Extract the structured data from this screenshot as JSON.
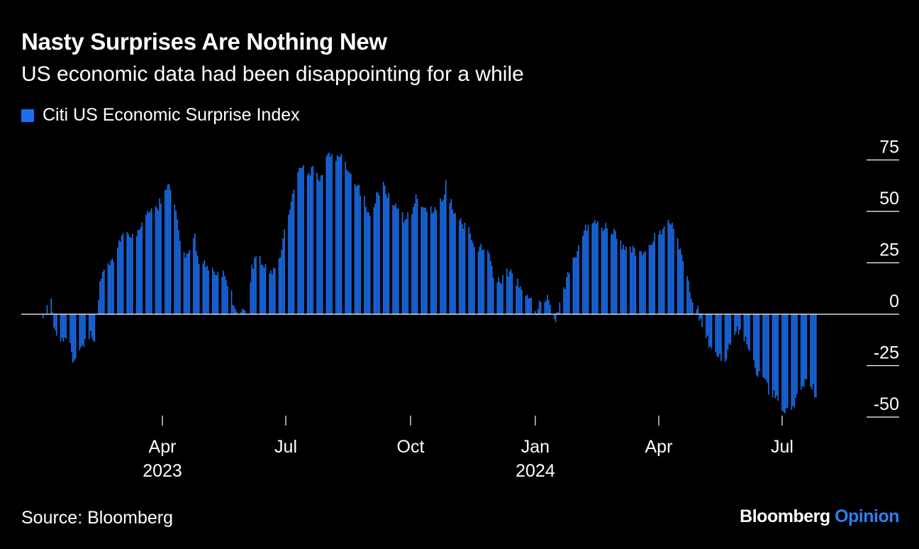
{
  "header": {
    "title": "Nasty Surprises Are Nothing New",
    "subtitle": "US economic data had been disappointing for a while"
  },
  "legend": {
    "label": "Citi US Economic Surprise Index"
  },
  "footer": {
    "source": "Source: Bloomberg",
    "brand_primary": "Bloomberg",
    "brand_secondary": "Opinion"
  },
  "colors": {
    "background": "#000000",
    "bar": "#1a6ff0",
    "text": "#ffffff",
    "brand_accent": "#2f7ff0"
  },
  "chart_data": {
    "type": "bar",
    "title": "Nasty Surprises Are Nothing New",
    "subtitle": "US economic data had been disappointing for a while",
    "series_name": "Citi US Economic Surprise Index",
    "frequency": "daily (business days)",
    "start_date": "2023-01-03",
    "end_date": "2024-07-26",
    "ylim": [
      -50,
      75
    ],
    "yticks": [
      75,
      50,
      25,
      0,
      -25,
      -50
    ],
    "ytick_labels": [
      "75",
      "50",
      "25",
      "0",
      "-25",
      "-50"
    ],
    "xticks": [
      {
        "date": "2023-04-01",
        "label": "Apr",
        "year": "2023"
      },
      {
        "date": "2023-07-01",
        "label": "Jul",
        "year": ""
      },
      {
        "date": "2023-10-01",
        "label": "Oct",
        "year": ""
      },
      {
        "date": "2024-01-01",
        "label": "Jan",
        "year": "2024"
      },
      {
        "date": "2024-04-01",
        "label": "Apr",
        "year": ""
      },
      {
        "date": "2024-07-01",
        "label": "Jul",
        "year": ""
      }
    ],
    "anchors": [
      [
        "2023-01-03",
        -2
      ],
      [
        "2023-01-09",
        9
      ],
      [
        "2023-01-11",
        -8
      ],
      [
        "2023-01-17",
        -12
      ],
      [
        "2023-01-23",
        -15
      ],
      [
        "2023-01-26",
        -25
      ],
      [
        "2023-02-01",
        -16
      ],
      [
        "2023-02-07",
        -10
      ],
      [
        "2023-02-10",
        -11
      ],
      [
        "2023-02-14",
        15
      ],
      [
        "2023-02-16",
        22
      ],
      [
        "2023-02-21",
        23
      ],
      [
        "2023-02-27",
        32
      ],
      [
        "2023-03-03",
        39
      ],
      [
        "2023-03-09",
        38
      ],
      [
        "2023-03-15",
        40
      ],
      [
        "2023-03-21",
        48
      ],
      [
        "2023-03-24",
        51
      ],
      [
        "2023-03-29",
        52
      ],
      [
        "2023-04-03",
        61
      ],
      [
        "2023-04-07",
        62
      ],
      [
        "2023-04-11",
        51
      ],
      [
        "2023-04-14",
        35
      ],
      [
        "2023-04-18",
        29
      ],
      [
        "2023-04-25",
        38
      ],
      [
        "2023-04-27",
        26
      ],
      [
        "2023-05-03",
        25
      ],
      [
        "2023-05-08",
        22
      ],
      [
        "2023-05-12",
        19
      ],
      [
        "2023-05-17",
        19
      ],
      [
        "2023-05-22",
        10
      ],
      [
        "2023-05-25",
        0
      ],
      [
        "2023-05-30",
        2
      ],
      [
        "2023-06-02",
        0
      ],
      [
        "2023-06-06",
        22
      ],
      [
        "2023-06-09",
        30
      ],
      [
        "2023-06-13",
        26
      ],
      [
        "2023-06-16",
        22
      ],
      [
        "2023-06-21",
        20
      ],
      [
        "2023-06-26",
        26
      ],
      [
        "2023-06-29",
        36
      ],
      [
        "2023-07-05",
        55
      ],
      [
        "2023-07-11",
        73
      ],
      [
        "2023-07-14",
        73
      ],
      [
        "2023-07-18",
        68
      ],
      [
        "2023-07-21",
        72
      ],
      [
        "2023-07-26",
        66
      ],
      [
        "2023-08-01",
        78
      ],
      [
        "2023-08-04",
        77
      ],
      [
        "2023-08-09",
        77
      ],
      [
        "2023-08-14",
        73
      ],
      [
        "2023-08-18",
        69
      ],
      [
        "2023-08-23",
        62
      ],
      [
        "2023-08-29",
        54
      ],
      [
        "2023-09-01",
        48
      ],
      [
        "2023-09-06",
        58
      ],
      [
        "2023-09-11",
        62
      ],
      [
        "2023-09-15",
        58
      ],
      [
        "2023-09-20",
        52
      ],
      [
        "2023-09-26",
        47
      ],
      [
        "2023-10-02",
        48
      ],
      [
        "2023-10-05",
        58
      ],
      [
        "2023-10-10",
        53
      ],
      [
        "2023-10-16",
        50
      ],
      [
        "2023-10-19",
        52
      ],
      [
        "2023-10-24",
        55
      ],
      [
        "2023-10-27",
        63
      ],
      [
        "2023-11-01",
        52
      ],
      [
        "2023-11-07",
        46
      ],
      [
        "2023-11-13",
        40
      ],
      [
        "2023-11-17",
        34
      ],
      [
        "2023-11-22",
        32
      ],
      [
        "2023-11-28",
        30
      ],
      [
        "2023-12-01",
        20
      ],
      [
        "2023-12-06",
        16
      ],
      [
        "2023-12-11",
        21
      ],
      [
        "2023-12-15",
        19
      ],
      [
        "2023-12-20",
        14
      ],
      [
        "2023-12-27",
        9
      ],
      [
        "2024-01-02",
        1
      ],
      [
        "2024-01-05",
        6
      ],
      [
        "2024-01-11",
        8
      ],
      [
        "2024-01-16",
        -2
      ],
      [
        "2024-01-19",
        5
      ],
      [
        "2024-01-24",
        17
      ],
      [
        "2024-01-30",
        28
      ],
      [
        "2024-02-05",
        40
      ],
      [
        "2024-02-09",
        44
      ],
      [
        "2024-02-14",
        47
      ],
      [
        "2024-02-20",
        42
      ],
      [
        "2024-02-23",
        44
      ],
      [
        "2024-02-28",
        40
      ],
      [
        "2024-03-04",
        35
      ],
      [
        "2024-03-08",
        31
      ],
      [
        "2024-03-13",
        32
      ],
      [
        "2024-03-18",
        29
      ],
      [
        "2024-03-22",
        32
      ],
      [
        "2024-03-27",
        36
      ],
      [
        "2024-04-02",
        40
      ],
      [
        "2024-04-05",
        43
      ],
      [
        "2024-04-10",
        44
      ],
      [
        "2024-04-15",
        35
      ],
      [
        "2024-04-18",
        28
      ],
      [
        "2024-04-23",
        16
      ],
      [
        "2024-04-26",
        6
      ],
      [
        "2024-04-30",
        3
      ],
      [
        "2024-05-03",
        -8
      ],
      [
        "2024-05-08",
        -14
      ],
      [
        "2024-05-14",
        -20
      ],
      [
        "2024-05-20",
        -23
      ],
      [
        "2024-05-23",
        -14
      ],
      [
        "2024-05-29",
        -8
      ],
      [
        "2024-06-03",
        -12
      ],
      [
        "2024-06-07",
        -16
      ],
      [
        "2024-06-12",
        -28
      ],
      [
        "2024-06-17",
        -31
      ],
      [
        "2024-06-21",
        -37
      ],
      [
        "2024-06-26",
        -40
      ],
      [
        "2024-07-01",
        -47
      ],
      [
        "2024-07-05",
        -46
      ],
      [
        "2024-07-10",
        -43
      ],
      [
        "2024-07-15",
        -37
      ],
      [
        "2024-07-19",
        -32
      ],
      [
        "2024-07-24",
        -35
      ],
      [
        "2024-07-26",
        -41
      ]
    ]
  }
}
